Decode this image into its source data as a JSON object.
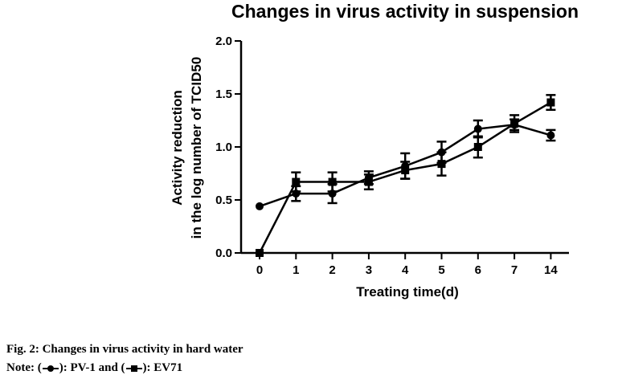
{
  "chart_data": {
    "type": "line",
    "title": "Changes in virus activity in suspension",
    "xlabel": "Treating time(d)",
    "ylabel_line1": "Activity reduction",
    "ylabel_line2": "in the log number of TCID50",
    "categories": [
      "0",
      "1",
      "2",
      "3",
      "4",
      "5",
      "6",
      "7",
      "14"
    ],
    "yticks": [
      "0.0",
      "0.5",
      "1.0",
      "1.5",
      "2.0"
    ],
    "ylim": [
      0,
      2.0
    ],
    "grid": false,
    "series": [
      {
        "name": "PV-1",
        "marker": "circle",
        "color": "#000000",
        "values": [
          0.44,
          0.56,
          0.56,
          0.71,
          0.82,
          0.95,
          1.17,
          1.21,
          1.11
        ],
        "errors": [
          0.0,
          0.07,
          0.09,
          0.06,
          0.12,
          0.1,
          0.08,
          0.05,
          0.05
        ]
      },
      {
        "name": "EV71",
        "marker": "square",
        "color": "#000000",
        "values": [
          0.0,
          0.67,
          0.67,
          0.67,
          0.78,
          0.84,
          1.0,
          1.22,
          1.42
        ],
        "errors": [
          0.0,
          0.09,
          0.09,
          0.07,
          0.08,
          0.11,
          0.1,
          0.08,
          0.07
        ]
      }
    ]
  },
  "caption": {
    "figure": "Fig. 2: Changes in virus activity in hard water",
    "note_prefix": "Note: (",
    "note_mid1": "): PV-1 and (",
    "note_mid2": "): EV71"
  }
}
